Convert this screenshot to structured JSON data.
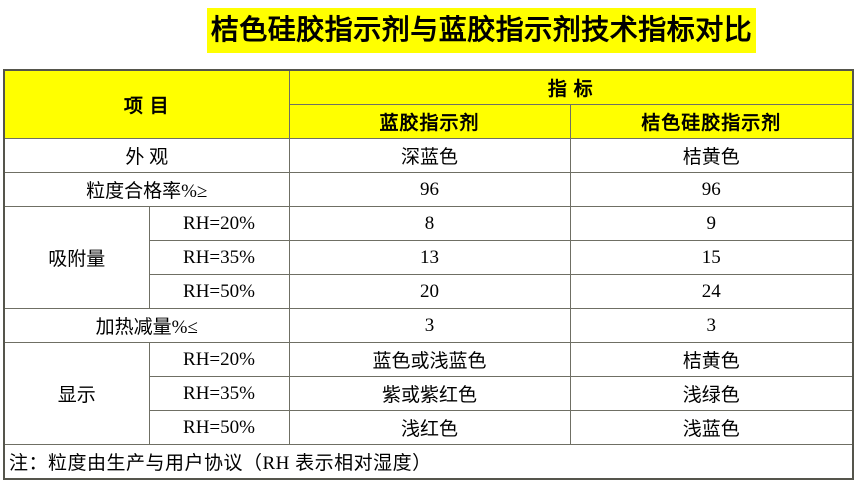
{
  "title": "桔色硅胶指示剂与蓝胶指示剂技术指标对比",
  "colors": {
    "highlight": "#ffff00",
    "border": "#6f6f64",
    "text": "#000000"
  },
  "table": {
    "header": {
      "item_label": "项  目",
      "indicator_label": "指  标",
      "col_blue": "蓝胶指示剂",
      "col_orange": "桔色硅胶指示剂"
    },
    "rows": {
      "appearance": {
        "label": "外  观",
        "blue": "深蓝色",
        "orange": "桔黄色"
      },
      "particle_pass_rate": {
        "label": "粒度合格率%≥",
        "blue": "96",
        "orange": "96"
      },
      "adsorption": {
        "label": "吸附量",
        "sub": [
          {
            "rh": "RH=20%",
            "blue": "8",
            "orange": "9"
          },
          {
            "rh": "RH=35%",
            "blue": "13",
            "orange": "15"
          },
          {
            "rh": "RH=50%",
            "blue": "20",
            "orange": "24"
          }
        ]
      },
      "heating_loss": {
        "label": "加热减量%≤",
        "blue": "3",
        "orange": "3"
      },
      "display": {
        "label": "显示",
        "sub": [
          {
            "rh": "RH=20%",
            "blue": "蓝色或浅蓝色",
            "orange": "桔黄色"
          },
          {
            "rh": "RH=35%",
            "blue": "紫或紫红色",
            "orange": "浅绿色"
          },
          {
            "rh": "RH=50%",
            "blue": "浅红色",
            "orange": "浅蓝色"
          }
        ]
      }
    },
    "note": "注：粒度由生产与用户协议（RH 表示相对湿度）"
  }
}
